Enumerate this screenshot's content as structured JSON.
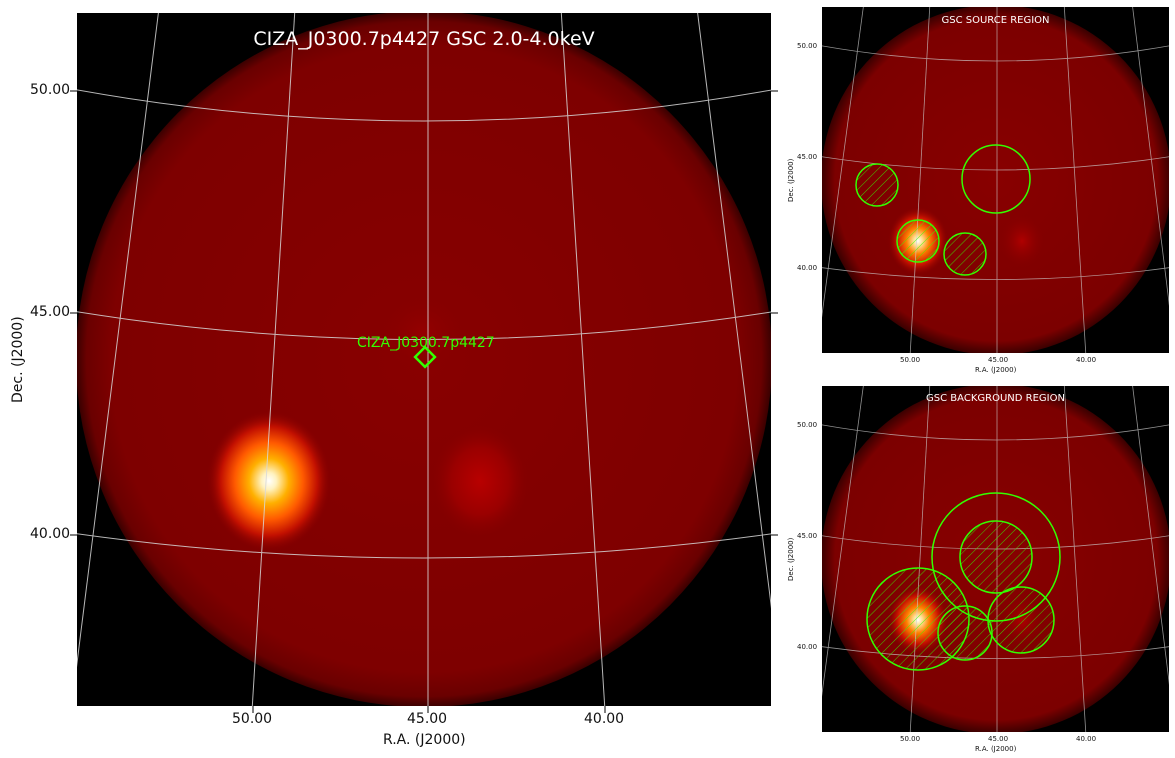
{
  "main": {
    "title": "CIZA_J0300.7p4427 GSC 2.0-4.0keV",
    "marker_label": "CIZA_J0300.7p4427",
    "xlabel": "R.A. (J2000)",
    "ylabel": "Dec. (J2000)",
    "xticks": [
      "50.00",
      "45.00",
      "40.00"
    ],
    "yticks": [
      "50.00",
      "45.00",
      "40.00"
    ]
  },
  "source_panel": {
    "title": "GSC SOURCE REGION",
    "xlabel": "R.A. (J2000)",
    "ylabel": "Dec. (J2000)",
    "xticks": [
      "50.00",
      "45.00",
      "40.00"
    ],
    "yticks": [
      "50.00",
      "45.00",
      "40.00"
    ]
  },
  "background_panel": {
    "title": "GSC BACKGROUND REGION",
    "xlabel": "R.A. (J2000)",
    "ylabel": "Dec. (J2000)",
    "xticks": [
      "50.00",
      "45.00",
      "40.00"
    ],
    "yticks": [
      "50.00",
      "45.00",
      "40.00"
    ]
  },
  "colors": {
    "disk": "#7a0000",
    "region": "#33ff00",
    "grid": "#d8d8d8",
    "background": "#000000"
  }
}
